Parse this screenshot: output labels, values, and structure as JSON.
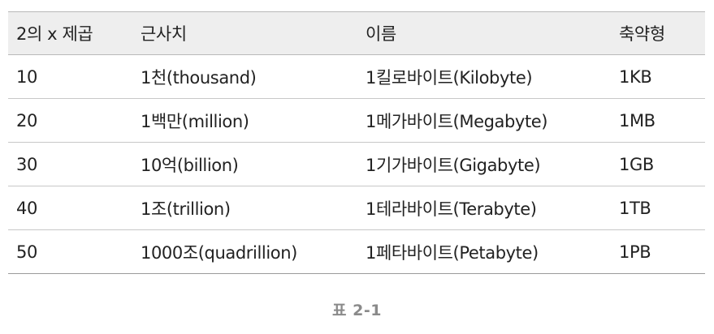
{
  "table": {
    "headers": [
      "2의 x 제곱",
      "근사치",
      "이름",
      "축약형"
    ],
    "rows": [
      [
        "10",
        "1천(thousand)",
        "1킬로바이트(Kilobyte)",
        "1KB"
      ],
      [
        "20",
        "1백만(million)",
        "1메가바이트(Megabyte)",
        "1MB"
      ],
      [
        "30",
        "10억(billion)",
        "1기가바이트(Gigabyte)",
        "1GB"
      ],
      [
        "40",
        "1조(trillion)",
        "1테라바이트(Terabyte)",
        "1TB"
      ],
      [
        "50",
        "1000조(quadrillion)",
        "1페타바이트(Petabyte)",
        "1PB"
      ]
    ]
  },
  "caption": "표 2-1"
}
